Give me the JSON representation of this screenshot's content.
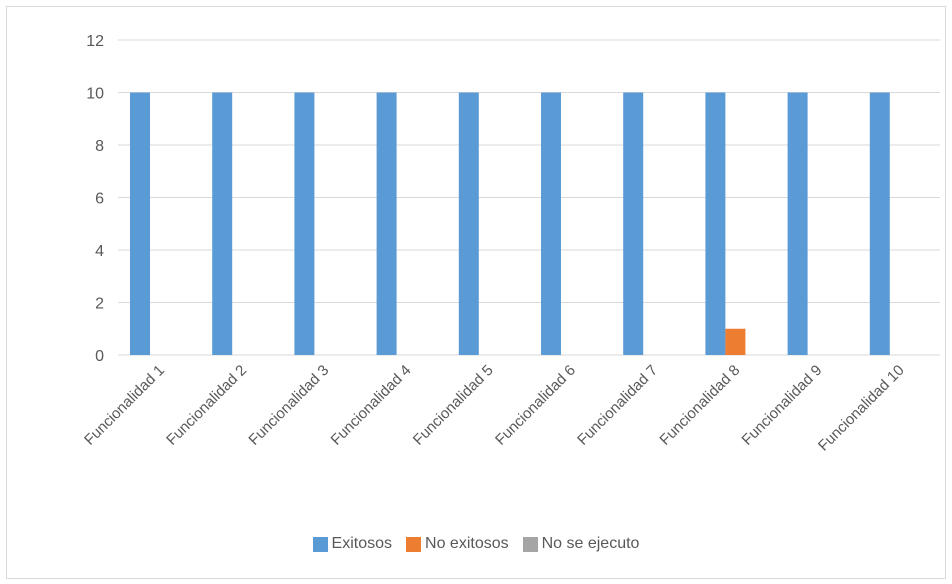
{
  "chart_data": {
    "type": "bar",
    "title": "",
    "xlabel": "",
    "ylabel": "",
    "ylim": [
      0,
      12
    ],
    "yticks": [
      0,
      2,
      4,
      6,
      8,
      10,
      12
    ],
    "grid": true,
    "legend_position": "bottom",
    "categories": [
      "Funcionalidad 1",
      "Funcionalidad 2",
      "Funcionalidad 3",
      "Funcionalidad 4",
      "Funcionalidad 5",
      "Funcionalidad 6",
      "Funcionalidad 7",
      "Funcionalidad 8",
      "Funcionalidad 9",
      "Funcionalidad 10"
    ],
    "series": [
      {
        "name": "Exitosos",
        "color": "#5b9bd5",
        "values": [
          10,
          10,
          10,
          10,
          10,
          10,
          10,
          10,
          10,
          10
        ]
      },
      {
        "name": "No exitosos",
        "color": "#ed7d31",
        "values": [
          0,
          0,
          0,
          0,
          0,
          0,
          0,
          1,
          0,
          0
        ]
      },
      {
        "name": "No se ejecuto",
        "color": "#a5a5a5",
        "values": [
          0,
          0,
          0,
          0,
          0,
          0,
          0,
          0,
          0,
          0
        ]
      }
    ]
  }
}
